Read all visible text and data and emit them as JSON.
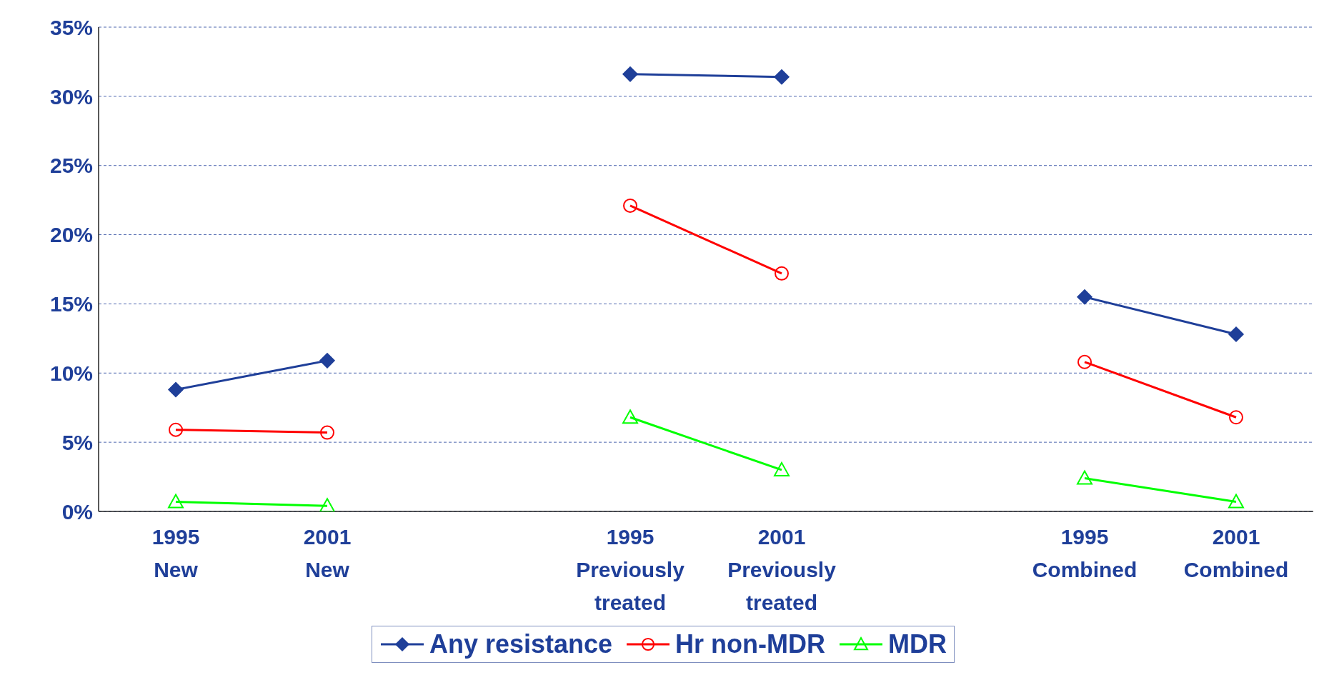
{
  "chart_data": {
    "type": "line",
    "categories": [
      "1995 New",
      "2001 New",
      null,
      "1995 Previously treated",
      "2001 Previously treated",
      null,
      "1995 Combined",
      "2001 Combined"
    ],
    "series": [
      {
        "name": "Any resistance",
        "color": "#1f3f99",
        "marker": "diamond",
        "values": [
          8.8,
          10.9,
          null,
          31.6,
          31.4,
          null,
          15.5,
          12.8
        ]
      },
      {
        "name": "Hr non-MDR",
        "color": "#ff0000",
        "marker": "circle",
        "values": [
          5.9,
          5.7,
          null,
          22.1,
          17.2,
          null,
          10.8,
          6.8
        ]
      },
      {
        "name": "MDR",
        "color": "#00ff00",
        "marker": "triangle",
        "values": [
          0.7,
          0.4,
          null,
          6.8,
          3.0,
          null,
          2.4,
          0.7
        ]
      }
    ],
    "ylim": [
      0,
      35
    ],
    "yticks": [
      {
        "value": 0,
        "label": "0%"
      },
      {
        "value": 5,
        "label": "5%"
      },
      {
        "value": 10,
        "label": "10%"
      },
      {
        "value": 15,
        "label": "15%"
      },
      {
        "value": 20,
        "label": "20%"
      },
      {
        "value": 25,
        "label": "25%"
      },
      {
        "value": 30,
        "label": "30%"
      },
      {
        "value": 35,
        "label": "35%"
      }
    ],
    "grid": "y",
    "legend": "bottom",
    "line_style": "solid"
  }
}
